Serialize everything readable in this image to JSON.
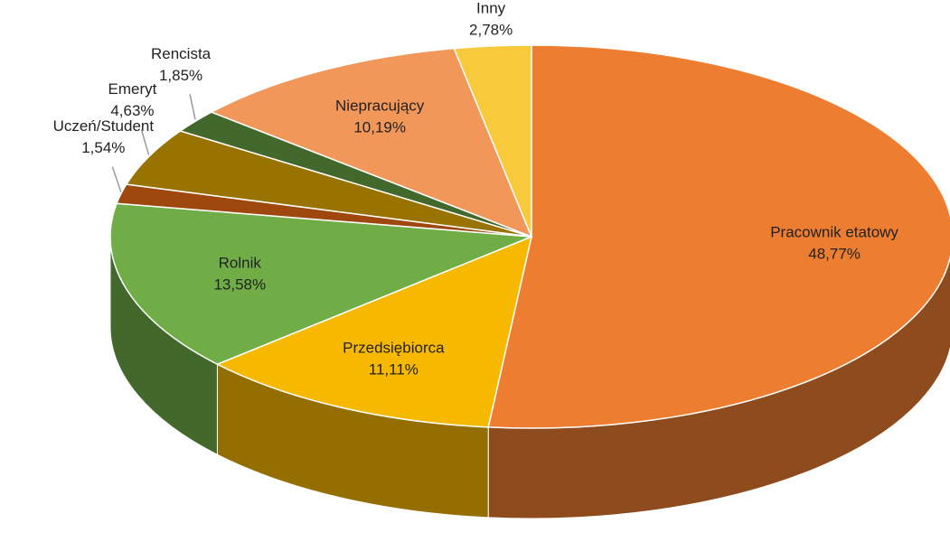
{
  "chart_data": {
    "type": "pie",
    "categories": [
      "Pracownik etatowy",
      "Przedsiębiorca",
      "Rolnik",
      "Uczeń/Student",
      "Emeryt",
      "Rencista",
      "Niepracujący",
      "Inny"
    ],
    "values": [
      48.77,
      11.11,
      13.58,
      1.54,
      4.63,
      1.85,
      10.19,
      2.78
    ],
    "value_labels": [
      "48,77%",
      "11,11%",
      "13,58%",
      "1,54%",
      "4,63%",
      "1,85%",
      "10,19%",
      "2,78%"
    ],
    "colors": [
      "#ED7D31",
      "#F7B900",
      "#70AD47",
      "#9E480E",
      "#997300",
      "#43682B",
      "#F1975A",
      "#F8C93A"
    ]
  }
}
